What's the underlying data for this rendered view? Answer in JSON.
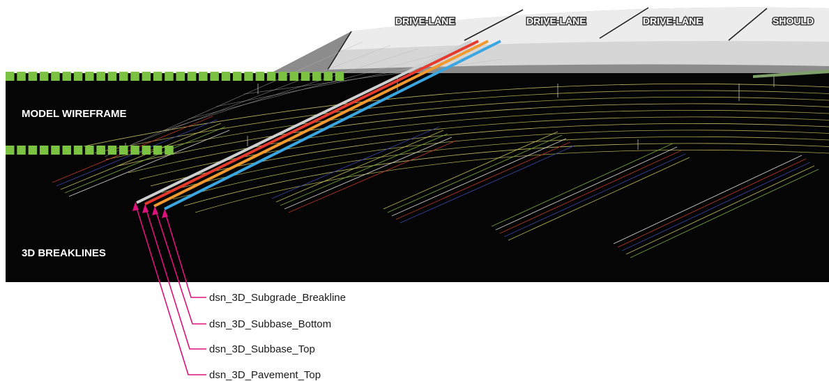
{
  "lanes": [
    {
      "label": "DRIVE-LANE"
    },
    {
      "label": "DRIVE-LANE"
    },
    {
      "label": "DRIVE-LANE"
    },
    {
      "label": "SHOULD"
    }
  ],
  "sections": {
    "wireframe_label": "MODEL WIREFRAME",
    "breaklines_label": "3D BREAKLINES"
  },
  "callouts": [
    {
      "label": "dsn_3D_Subgrade_Breakline",
      "color": "#3aa6e0"
    },
    {
      "label": "dsn_3D_Subbase_Bottom",
      "color": "#f29a2e"
    },
    {
      "label": "dsn_3D_Subbase_Top",
      "color": "#e53a2e"
    },
    {
      "label": "dsn_3D_Pavement_Top",
      "color": "#cfcfcf"
    }
  ],
  "colors": {
    "background": "#050505",
    "wireframe": "#c9c45a",
    "marker_green": "#7cc242",
    "leader_magenta": "#e0107c"
  }
}
